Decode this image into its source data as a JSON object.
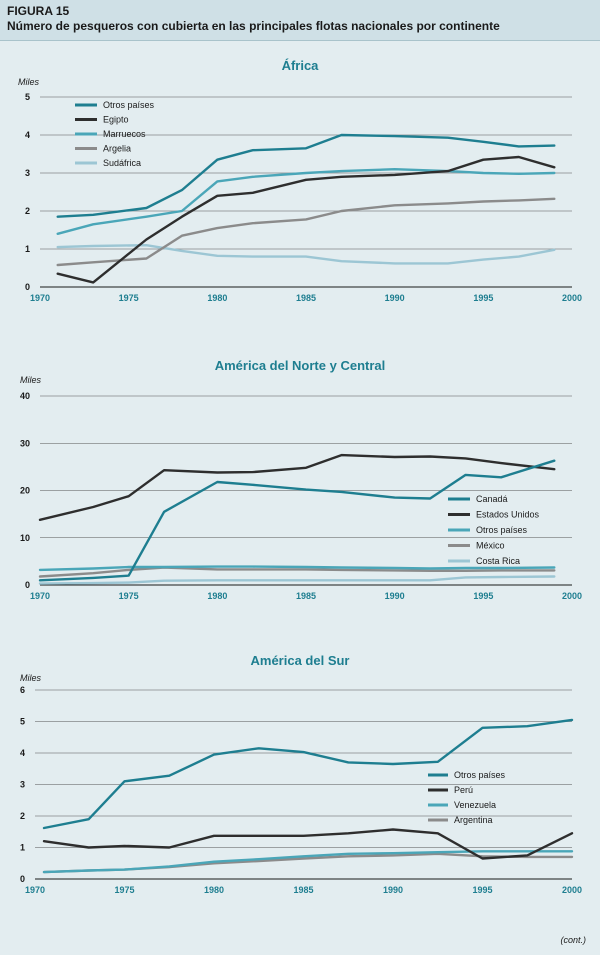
{
  "figure": {
    "label": "FIGURA 15",
    "title": "Número de pesqueros con cubierta en las principales flotas nacionales por continente",
    "continued": "(cont.)"
  },
  "colors": {
    "teal_dark": "#1e7e90",
    "black": "#2e2e2e",
    "teal_medium": "#4aa6b8",
    "gray": "#8b8b8b",
    "light_blue": "#9cc6d4",
    "light_gray": "#b5b5b5",
    "background": "#e3edf0"
  },
  "chart_data": [
    {
      "type": "line",
      "title": "África",
      "unit_label": "Miles",
      "xlim": [
        1970,
        2000
      ],
      "ylim": [
        0,
        5
      ],
      "x_ticks": [
        1970,
        1975,
        1980,
        1985,
        1990,
        1995,
        2000
      ],
      "y_ticks": [
        0,
        1,
        2,
        3,
        4,
        5
      ],
      "grid": true,
      "legend_position": "top-left",
      "series": [
        {
          "name": "Otros países",
          "color": "#1e7e90",
          "x": [
            1971,
            1973,
            1976,
            1978,
            1980,
            1982,
            1985,
            1987,
            1990,
            1993,
            1995,
            1997,
            1999
          ],
          "y": [
            1.85,
            1.9,
            2.08,
            2.55,
            3.35,
            3.6,
            3.65,
            4.0,
            3.97,
            3.93,
            3.82,
            3.7,
            3.72
          ]
        },
        {
          "name": "Egipto",
          "color": "#2e2e2e",
          "x": [
            1971,
            1973,
            1976,
            1978,
            1980,
            1982,
            1985,
            1987,
            1990,
            1993,
            1995,
            1997,
            1999
          ],
          "y": [
            0.35,
            0.12,
            1.25,
            1.85,
            2.4,
            2.48,
            2.82,
            2.9,
            2.95,
            3.05,
            3.35,
            3.42,
            3.15
          ]
        },
        {
          "name": "Marruecos",
          "color": "#4aa6b8",
          "x": [
            1971,
            1973,
            1976,
            1978,
            1980,
            1982,
            1985,
            1987,
            1990,
            1993,
            1995,
            1997,
            1999
          ],
          "y": [
            1.4,
            1.65,
            1.85,
            2.0,
            2.78,
            2.9,
            3.0,
            3.05,
            3.1,
            3.05,
            3.0,
            2.98,
            3.0
          ]
        },
        {
          "name": "Argelia",
          "color": "#8b8b8b",
          "x": [
            1971,
            1973,
            1976,
            1978,
            1980,
            1982,
            1985,
            1987,
            1990,
            1993,
            1995,
            1997,
            1999
          ],
          "y": [
            0.58,
            0.65,
            0.75,
            1.35,
            1.55,
            1.68,
            1.78,
            2.0,
            2.15,
            2.2,
            2.25,
            2.28,
            2.32
          ]
        },
        {
          "name": "Sudáfrica",
          "color": "#9cc6d4",
          "x": [
            1971,
            1973,
            1976,
            1978,
            1980,
            1982,
            1985,
            1987,
            1990,
            1993,
            1995,
            1997,
            1999
          ],
          "y": [
            1.05,
            1.08,
            1.1,
            0.95,
            0.82,
            0.8,
            0.8,
            0.68,
            0.62,
            0.62,
            0.72,
            0.8,
            0.98
          ]
        }
      ]
    },
    {
      "type": "line",
      "title": "América del Norte y Central",
      "unit_label": "Miles",
      "xlim": [
        1970,
        2000
      ],
      "ylim": [
        0,
        40
      ],
      "x_ticks": [
        1970,
        1975,
        1980,
        1985,
        1990,
        1995,
        2000
      ],
      "y_ticks": [
        0,
        10,
        20,
        30,
        40
      ],
      "grid": true,
      "legend_position": "bottom-right",
      "series": [
        {
          "name": "Canadá",
          "color": "#1e7e90",
          "x": [
            1970,
            1973,
            1975,
            1977,
            1980,
            1982,
            1985,
            1987,
            1990,
            1992,
            1994,
            1996,
            1999
          ],
          "y": [
            1.0,
            1.5,
            2.0,
            15.5,
            21.8,
            21.2,
            20.2,
            19.7,
            18.5,
            18.3,
            23.3,
            22.8,
            26.3
          ]
        },
        {
          "name": "Estados Unidos",
          "color": "#2e2e2e",
          "x": [
            1970,
            1973,
            1975,
            1977,
            1980,
            1982,
            1985,
            1987,
            1990,
            1992,
            1994,
            1996,
            1999
          ],
          "y": [
            13.8,
            16.5,
            18.8,
            24.3,
            23.8,
            23.9,
            24.8,
            27.5,
            27.1,
            27.2,
            26.8,
            25.8,
            24.5
          ]
        },
        {
          "name": "Otros países",
          "color": "#4aa6b8",
          "x": [
            1970,
            1973,
            1975,
            1977,
            1980,
            1982,
            1985,
            1987,
            1990,
            1992,
            1994,
            1996,
            1999
          ],
          "y": [
            3.2,
            3.5,
            3.8,
            3.8,
            3.9,
            3.9,
            3.8,
            3.7,
            3.6,
            3.5,
            3.6,
            3.6,
            3.7
          ]
        },
        {
          "name": "México",
          "color": "#8b8b8b",
          "x": [
            1970,
            1973,
            1975,
            1977,
            1980,
            1982,
            1985,
            1987,
            1990,
            1992,
            1994,
            1996,
            1999
          ],
          "y": [
            1.8,
            2.5,
            3.2,
            3.7,
            3.3,
            3.3,
            3.3,
            3.2,
            3.1,
            3.0,
            3.0,
            3.1,
            3.1
          ]
        },
        {
          "name": "Costa Rica",
          "color": "#9cc6d4",
          "x": [
            1970,
            1973,
            1975,
            1977,
            1980,
            1982,
            1985,
            1987,
            1990,
            1992,
            1994,
            1996,
            1999
          ],
          "y": [
            0.3,
            0.4,
            0.5,
            0.9,
            1.0,
            1.0,
            1.0,
            1.0,
            1.0,
            1.0,
            1.6,
            1.7,
            1.8
          ]
        }
      ]
    },
    {
      "type": "line",
      "title": "América del Sur",
      "unit_label": "Miles",
      "xlim": [
        1970,
        2000
      ],
      "ylim": [
        0,
        6
      ],
      "x_ticks": [
        1970,
        1975,
        1980,
        1985,
        1990,
        1995,
        2000
      ],
      "y_ticks": [
        0,
        1,
        2,
        3,
        4,
        5,
        6
      ],
      "grid": true,
      "legend_position": "right",
      "series": [
        {
          "name": "Otros países",
          "color": "#1e7e90",
          "x": [
            1970.5,
            1973,
            1975,
            1977.5,
            1980,
            1982.5,
            1985,
            1987.5,
            1990,
            1992.5,
            1995,
            1997.5,
            2000
          ],
          "y": [
            1.62,
            1.9,
            3.1,
            3.28,
            3.95,
            4.15,
            4.03,
            3.7,
            3.65,
            3.72,
            4.8,
            4.85,
            5.05
          ]
        },
        {
          "name": "Perú",
          "color": "#2e2e2e",
          "x": [
            1970.5,
            1973,
            1975,
            1977.5,
            1980,
            1982.5,
            1985,
            1987.5,
            1990,
            1992.5,
            1995,
            1997.5,
            2000
          ],
          "y": [
            1.2,
            1.0,
            1.05,
            1.0,
            1.37,
            1.37,
            1.37,
            1.45,
            1.57,
            1.45,
            0.65,
            0.75,
            1.45
          ]
        },
        {
          "name": "Venezuela",
          "color": "#4aa6b8",
          "x": [
            1970.5,
            1973,
            1975,
            1977.5,
            1980,
            1982.5,
            1985,
            1987.5,
            1990,
            1992.5,
            1995,
            1997.5,
            2000
          ],
          "y": [
            0.22,
            0.27,
            0.3,
            0.4,
            0.55,
            0.63,
            0.72,
            0.8,
            0.82,
            0.85,
            0.88,
            0.88,
            0.88
          ]
        },
        {
          "name": "Argentina",
          "color": "#8b8b8b",
          "x": [
            1970.5,
            1973,
            1975,
            1977.5,
            1980,
            1982.5,
            1985,
            1987.5,
            1990,
            1992.5,
            1995,
            1997.5,
            2000
          ],
          "y": [
            0.22,
            0.27,
            0.3,
            0.38,
            0.5,
            0.57,
            0.65,
            0.72,
            0.75,
            0.8,
            0.72,
            0.7,
            0.7
          ]
        }
      ]
    }
  ]
}
